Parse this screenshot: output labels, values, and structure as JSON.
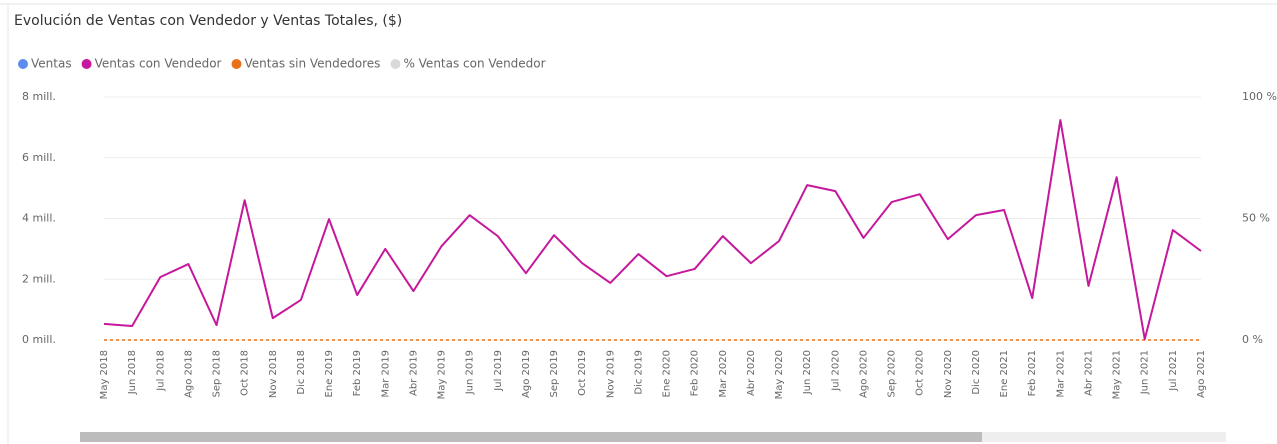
{
  "chart_data": {
    "type": "line",
    "title": "Evolución de Ventas con Vendedor y Ventas Totales, ($)",
    "categories": [
      "May 2018",
      "Jun 2018",
      "Jul 2018",
      "Ago 2018",
      "Sep 2018",
      "Oct 2018",
      "Nov 2018",
      "Dic 2018",
      "Ene 2019",
      "Feb 2019",
      "Mar 2019",
      "Abr 2019",
      "May 2019",
      "Jun 2019",
      "Jul 2019",
      "Ago 2019",
      "Sep 2019",
      "Oct 2019",
      "Nov 2019",
      "Dic 2019",
      "Ene 2020",
      "Feb 2020",
      "Mar 2020",
      "Abr 2020",
      "May 2020",
      "Jun 2020",
      "Jul 2020",
      "Ago 2020",
      "Sep 2020",
      "Oct 2020",
      "Nov 2020",
      "Dic 2020",
      "Ene 2021",
      "Feb 2021",
      "Mar 2021",
      "Abr 2021",
      "May 2021",
      "Jun 2021",
      "Jul 2021",
      "Ago 2021"
    ],
    "series": [
      {
        "name": "Ventas",
        "color": "#5b8def"
      },
      {
        "name": "Ventas con Vendedor",
        "color": "#c5189c",
        "values": [
          0.53,
          0.46,
          2.07,
          2.5,
          0.49,
          4.6,
          0.72,
          1.32,
          3.98,
          1.48,
          3.0,
          1.61,
          3.09,
          4.11,
          3.42,
          2.2,
          3.45,
          2.53,
          1.88,
          2.83,
          2.1,
          2.34,
          3.42,
          2.53,
          3.26,
          5.1,
          4.9,
          3.36,
          4.54,
          4.8,
          3.32,
          4.11,
          4.28,
          1.38,
          7.24,
          1.78,
          5.36,
          0.03,
          3.62,
          2.93
        ]
      },
      {
        "name": "Ventas sin Vendedores",
        "color": "#e8711a",
        "dashed": true,
        "values": [
          0,
          0,
          0,
          0,
          0,
          0,
          0,
          0,
          0,
          0,
          0,
          0,
          0,
          0,
          0,
          0,
          0,
          0,
          0,
          0,
          0,
          0,
          0,
          0,
          0,
          0,
          0,
          0,
          0,
          0,
          0,
          0,
          0,
          0,
          0,
          0,
          0,
          0,
          0,
          0
        ]
      },
      {
        "name": "% Ventas con Vendedor",
        "color": "#d9d9d9",
        "axis": "y2"
      }
    ],
    "ylim": [
      0,
      8
    ],
    "yticks": [
      {
        "value": 0,
        "label": "0 mill."
      },
      {
        "value": 2,
        "label": "2 mill."
      },
      {
        "value": 4,
        "label": "4 mill."
      },
      {
        "value": 6,
        "label": "6 mill."
      },
      {
        "value": 8,
        "label": "8 mill."
      }
    ],
    "y2lim": [
      0,
      100
    ],
    "y2ticks": [
      {
        "value": 0,
        "label": "0 %"
      },
      {
        "value": 50,
        "label": "50 %"
      },
      {
        "value": 100,
        "label": "100 %"
      }
    ],
    "grid": true
  }
}
